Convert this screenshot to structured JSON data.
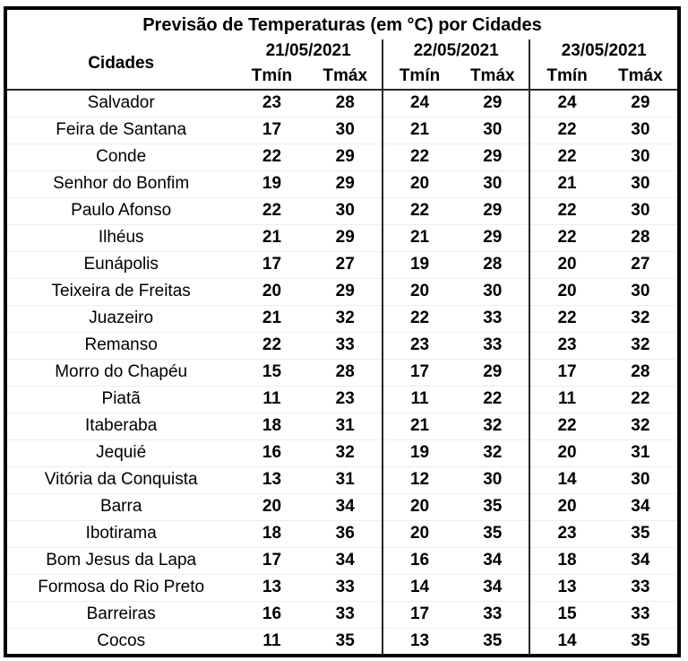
{
  "title": "Previsão de Temperaturas (em °C) por Cidades",
  "header": {
    "cities_label": "Cidades",
    "date_groups": [
      "21/05/2021",
      "22/05/2021",
      "23/05/2021"
    ],
    "tmin_label": "Tmín",
    "tmax_label": "Tmáx"
  },
  "chart_data": {
    "type": "table",
    "title": "Previsão de Temperaturas (em °C) por Cidades",
    "column_groups": [
      "21/05/2021",
      "22/05/2021",
      "23/05/2021"
    ],
    "sub_columns": [
      "Tmín",
      "Tmáx"
    ],
    "row_header_label": "Cidades",
    "rows": [
      {
        "city": "Salvador",
        "temps": [
          23,
          28,
          24,
          29,
          24,
          29
        ]
      },
      {
        "city": "Feira de Santana",
        "temps": [
          17,
          30,
          21,
          30,
          22,
          30
        ]
      },
      {
        "city": "Conde",
        "temps": [
          22,
          29,
          22,
          29,
          22,
          30
        ]
      },
      {
        "city": "Senhor do Bonfim",
        "temps": [
          19,
          29,
          20,
          30,
          21,
          30
        ]
      },
      {
        "city": "Paulo Afonso",
        "temps": [
          22,
          30,
          22,
          29,
          22,
          30
        ]
      },
      {
        "city": "Ilhéus",
        "temps": [
          21,
          29,
          21,
          29,
          22,
          28
        ]
      },
      {
        "city": "Eunápolis",
        "temps": [
          17,
          27,
          19,
          28,
          20,
          27
        ]
      },
      {
        "city": "Teixeira de Freitas",
        "temps": [
          20,
          29,
          20,
          30,
          20,
          30
        ]
      },
      {
        "city": "Juazeiro",
        "temps": [
          21,
          32,
          22,
          33,
          22,
          32
        ]
      },
      {
        "city": "Remanso",
        "temps": [
          22,
          33,
          23,
          33,
          23,
          32
        ]
      },
      {
        "city": "Morro do Chapéu",
        "temps": [
          15,
          28,
          17,
          29,
          17,
          28
        ]
      },
      {
        "city": "Piatã",
        "temps": [
          11,
          23,
          11,
          22,
          11,
          22
        ]
      },
      {
        "city": "Itaberaba",
        "temps": [
          18,
          31,
          21,
          32,
          22,
          32
        ]
      },
      {
        "city": "Jequié",
        "temps": [
          16,
          32,
          19,
          32,
          20,
          31
        ]
      },
      {
        "city": "Vitória da Conquista",
        "temps": [
          13,
          31,
          12,
          30,
          14,
          30
        ]
      },
      {
        "city": "Barra",
        "temps": [
          20,
          34,
          20,
          35,
          20,
          34
        ]
      },
      {
        "city": "Ibotirama",
        "temps": [
          18,
          36,
          20,
          35,
          23,
          35
        ]
      },
      {
        "city": "Bom Jesus da Lapa",
        "temps": [
          17,
          34,
          16,
          34,
          18,
          34
        ]
      },
      {
        "city": "Formosa do Rio Preto",
        "temps": [
          13,
          33,
          14,
          34,
          13,
          33
        ]
      },
      {
        "city": "Barreiras",
        "temps": [
          16,
          33,
          17,
          33,
          15,
          33
        ]
      },
      {
        "city": "Cocos",
        "temps": [
          11,
          35,
          13,
          35,
          14,
          35
        ]
      }
    ]
  },
  "colors": {
    "text": "#000000",
    "border": "#000000",
    "separator": "#262626",
    "faint_gridline": "#ededed",
    "background": "#ffffff"
  }
}
